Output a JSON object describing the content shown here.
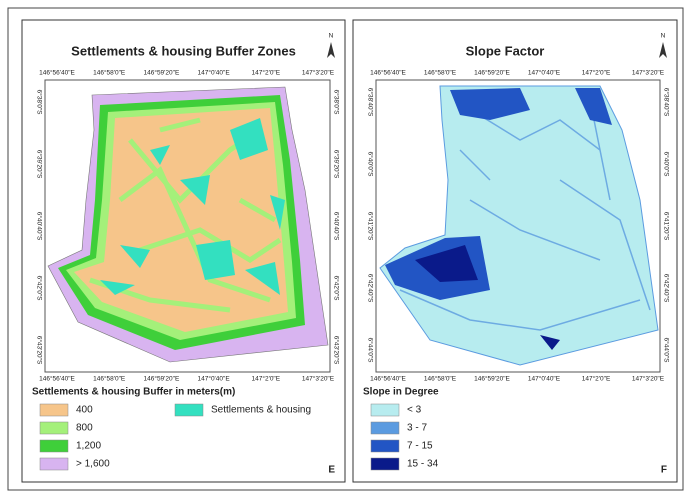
{
  "panels": [
    {
      "title": "Settlements & housing Buffer Zones",
      "north": "N",
      "letter": "E",
      "top_labels": [
        "146°56'40\"E",
        "146°58'0\"E",
        "146°59'20\"E",
        "147°0'40\"E",
        "147°2'0\"E",
        "147°3'20\"E"
      ],
      "bottom_labels": [
        "146°56'40\"E",
        "146°58'0\"E",
        "146°59'20\"E",
        "147°0'40\"E",
        "147°2'0\"E",
        "147°3'20\"E"
      ],
      "left_labels": [
        "6°38'0\"S",
        "6°39'20\"S",
        "6°40'40\"S",
        "6°42'0\"S",
        "6°43'20\"S"
      ],
      "right_labels": [
        "6°38'0\"S",
        "6°39'20\"S",
        "6°40'40\"S",
        "6°42'0\"S",
        "6°43'20\"S"
      ],
      "legend": {
        "title": "Settlements & housing Buffer in meters(m)",
        "items": [
          {
            "label": "400",
            "color": "#f6c58a"
          },
          {
            "label": "800",
            "color": "#a4f07a"
          },
          {
            "label": "1,200",
            "color": "#3fcf3a"
          },
          {
            "label": "> 1,600",
            "color": "#d8b4f0"
          },
          {
            "label": "Settlements & housing",
            "color": "#33e0c0"
          }
        ]
      }
    },
    {
      "title": "Slope Factor",
      "north": "N",
      "letter": "F",
      "top_labels": [
        "146°56'40\"E",
        "146°58'0\"E",
        "146°59'20\"E",
        "147°0'40\"E",
        "147°2'0\"E",
        "147°3'20\"E"
      ],
      "bottom_labels": [
        "146°56'40\"E",
        "146°58'0\"E",
        "146°59'20\"E",
        "147°0'40\"E",
        "147°2'0\"E",
        "147°3'20\"E"
      ],
      "left_labels": [
        "6°38'40\"S",
        "6°40'0\"S",
        "6°41'20\"S",
        "6°42'40\"S",
        "6°44'0\"S"
      ],
      "right_labels": [
        "6°38'40\"S",
        "6°40'0\"S",
        "6°41'20\"S",
        "6°42'40\"S",
        "6°44'0\"S"
      ],
      "legend": {
        "title": "Slope in Degree",
        "items": [
          {
            "label": "< 3",
            "color": "#b7ecef"
          },
          {
            "label": "3 - 7",
            "color": "#5b9be0"
          },
          {
            "label": "7 - 15",
            "color": "#2255c4"
          },
          {
            "label": "15 - 34",
            "color": "#0a1a8a"
          }
        ]
      }
    }
  ]
}
